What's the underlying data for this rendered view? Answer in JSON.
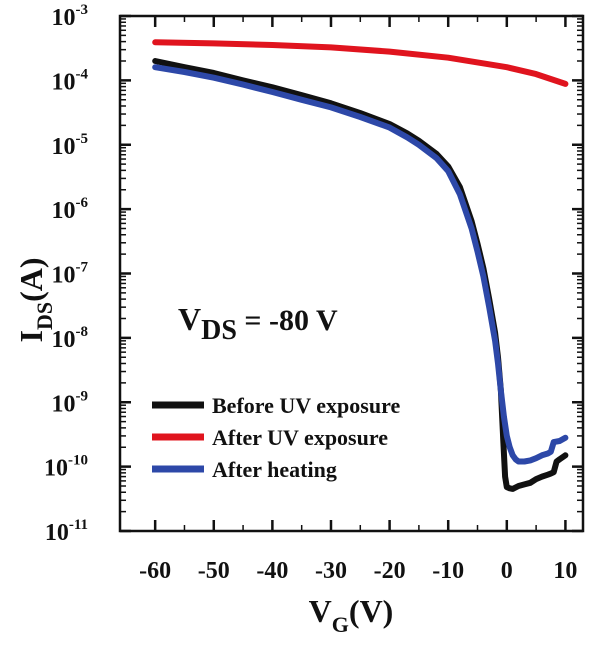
{
  "chart_data": {
    "type": "line",
    "title": "",
    "xlabel": {
      "main": "V",
      "sub": "G",
      "unit": "(V)"
    },
    "ylabel": {
      "main": "I",
      "sub": "DS",
      "unit": "(A)"
    },
    "xscale": "linear",
    "yscale": "log",
    "xlim": [
      -66,
      13
    ],
    "ylim": [
      1e-11,
      0.001
    ],
    "xticks": [
      -60,
      -50,
      -40,
      -30,
      -20,
      -10,
      0,
      10
    ],
    "xtick_labels": [
      "-60",
      "-50",
      "-40",
      "-30",
      "-20",
      "-10",
      "0",
      "10"
    ],
    "yticks": [
      {
        "value": 0.001,
        "base": "10",
        "exp": "-3"
      },
      {
        "value": 0.0001,
        "base": "10",
        "exp": "-4"
      },
      {
        "value": 1e-05,
        "base": "10",
        "exp": "-5"
      },
      {
        "value": 1e-06,
        "base": "10",
        "exp": "-6"
      },
      {
        "value": 1e-07,
        "base": "10",
        "exp": "-7"
      },
      {
        "value": 1e-08,
        "base": "10",
        "exp": "-8"
      },
      {
        "value": 1e-09,
        "base": "10",
        "exp": "-9"
      },
      {
        "value": 1e-10,
        "base": "10",
        "exp": "-10"
      },
      {
        "value": 1e-11,
        "base": "10",
        "exp": "-11"
      }
    ],
    "annotation": {
      "main": "V",
      "sub": "DS",
      "rest": " = -80 V"
    },
    "legend": {
      "placement": "lower-left"
    },
    "series": [
      {
        "name": "Before UV exposure",
        "color": "#111111",
        "x": [
          -60,
          -55,
          -50,
          -45,
          -40,
          -35,
          -30,
          -25,
          -20,
          -17,
          -15,
          -12,
          -10,
          -8,
          -6,
          -5,
          -4,
          -3,
          -2,
          -1.5,
          -1,
          -0.6,
          -0.3,
          0,
          0.5,
          1,
          2,
          3,
          4,
          5,
          6,
          7,
          7.5,
          8,
          8.5,
          9,
          10
        ],
        "y": [
          0.0002,
          0.00016,
          0.00013,
          0.0001,
          7.8e-05,
          5.9e-05,
          4.4e-05,
          3.1e-05,
          2.1e-05,
          1.5e-05,
          1.15e-05,
          7.2e-06,
          4.6e-06,
          2.2e-06,
          6.5e-07,
          2.9e-07,
          1.2e-07,
          4e-08,
          1.2e-08,
          5e-09,
          1.5e-09,
          2.5e-10,
          7e-11,
          4.8e-11,
          4.6e-11,
          4.5e-11,
          5e-11,
          5.3e-11,
          5.6e-11,
          6.4e-11,
          7e-11,
          7.5e-11,
          7.8e-11,
          8.2e-11,
          1.2e-10,
          1.3e-10,
          1.5e-10
        ]
      },
      {
        "name": "After UV exposure",
        "color": "#e0141e",
        "x": [
          -60,
          -50,
          -40,
          -30,
          -20,
          -10,
          0,
          5,
          10
        ],
        "y": [
          0.00039,
          0.000375,
          0.000355,
          0.000325,
          0.00028,
          0.000225,
          0.00016,
          0.000125,
          8.8e-05
        ]
      },
      {
        "name": "After heating",
        "color": "#2d48a8",
        "x": [
          -60,
          -55,
          -50,
          -45,
          -40,
          -35,
          -30,
          -25,
          -20,
          -17,
          -15,
          -12,
          -10,
          -8,
          -6,
          -5,
          -4,
          -3,
          -2,
          -1.5,
          -1,
          -0.5,
          0,
          0.5,
          1,
          1.5,
          2,
          3,
          4,
          5,
          6,
          7,
          7.5,
          8,
          9,
          10
        ],
        "y": [
          0.00016,
          0.000135,
          0.00011,
          8.6e-05,
          6.6e-05,
          5e-05,
          3.8e-05,
          2.7e-05,
          1.85e-05,
          1.3e-05,
          1e-05,
          6.2e-06,
          3.9e-06,
          1.7e-06,
          5e-07,
          2.2e-07,
          9e-08,
          3e-08,
          9e-09,
          4e-09,
          1.5e-09,
          6e-10,
          3e-10,
          2e-10,
          1.5e-10,
          1.3e-10,
          1.2e-10,
          1.2e-10,
          1.25e-10,
          1.35e-10,
          1.5e-10,
          1.6e-10,
          1.7e-10,
          2.4e-10,
          2.5e-10,
          2.8e-10
        ]
      }
    ]
  }
}
